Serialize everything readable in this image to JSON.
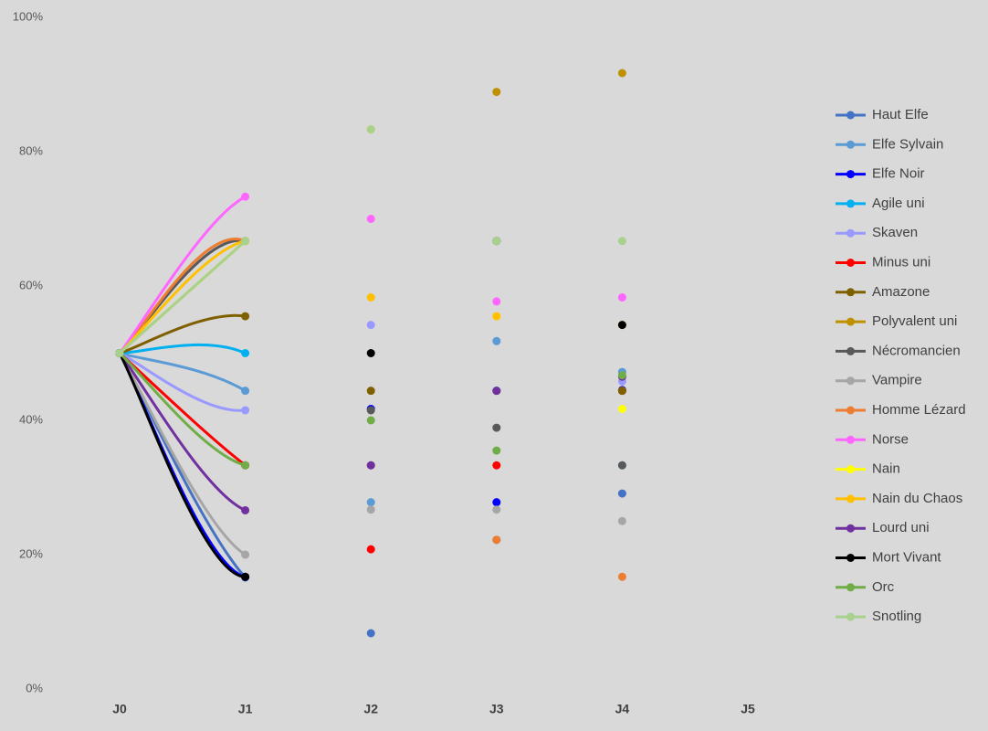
{
  "chart_data": {
    "type": "line",
    "categories": [
      "J0",
      "J1",
      "J2",
      "J3",
      "J4",
      "J5"
    ],
    "ylim": [
      0,
      100
    ],
    "yticks": [
      {
        "value": 0,
        "label": "0%"
      },
      {
        "value": 20,
        "label": "20%"
      },
      {
        "value": 40,
        "label": "40%"
      },
      {
        "value": 60,
        "label": "60%"
      },
      {
        "value": 80,
        "label": "80%"
      },
      {
        "value": 100,
        "label": "100%"
      }
    ],
    "grid": false,
    "smooth": true,
    "legend": "right",
    "series": [
      {
        "name": "Haut Elfe",
        "color": "#4472c4",
        "values": [
          50,
          16.6,
          8.3,
          22.2,
          29.1,
          null
        ]
      },
      {
        "name": "Elfe Sylvain",
        "color": "#5b9bd5",
        "values": [
          50,
          44.4,
          27.8,
          51.8,
          47.2,
          null
        ]
      },
      {
        "name": "Elfe Noir",
        "color": "#0000ff",
        "values": [
          50,
          16.7,
          41.7,
          27.8,
          44.5,
          null
        ]
      },
      {
        "name": "Agile uni",
        "color": "#00b0f0",
        "values": [
          50,
          50,
          33.3,
          44.4,
          33.3,
          null
        ]
      },
      {
        "name": "Skaven",
        "color": "#9999ff",
        "values": [
          50,
          41.5,
          54.2,
          44.4,
          45.8,
          null
        ]
      },
      {
        "name": "Minus uni",
        "color": "#ff0000",
        "values": [
          50,
          33.3,
          20.8,
          33.3,
          44.4,
          null
        ]
      },
      {
        "name": "Amazone",
        "color": "#7f6000",
        "values": [
          50,
          55.5,
          44.4,
          44.4,
          44.4,
          null
        ]
      },
      {
        "name": "Polyvalent uni",
        "color": "#bf9000",
        "values": [
          50,
          66.7,
          83.3,
          88.9,
          91.7,
          null
        ]
      },
      {
        "name": "Nécromancien",
        "color": "#595959",
        "values": [
          50,
          66.7,
          41.5,
          38.9,
          33.3,
          null
        ]
      },
      {
        "name": "Vampire",
        "color": "#a6a6a6",
        "values": [
          50,
          20,
          26.7,
          26.7,
          25,
          null
        ]
      },
      {
        "name": "Homme Lézard",
        "color": "#ed7d31",
        "values": [
          50,
          66.7,
          33.3,
          22.2,
          16.7,
          null
        ]
      },
      {
        "name": "Norse",
        "color": "#ff66ff",
        "values": [
          50,
          73.3,
          70,
          57.7,
          58.3,
          null
        ]
      },
      {
        "name": "Nain",
        "color": "#ffff00",
        "values": [
          50,
          66.7,
          83.3,
          55.5,
          41.7,
          null
        ]
      },
      {
        "name": "Nain du Chaos",
        "color": "#ffc000",
        "values": [
          50,
          66.7,
          58.3,
          55.5,
          54.2,
          null
        ]
      },
      {
        "name": "Lourd uni",
        "color": "#7030a0",
        "values": [
          50,
          26.6,
          33.3,
          44.4,
          46.5,
          null
        ]
      },
      {
        "name": "Mort Vivant",
        "color": "#000000",
        "values": [
          50,
          16.7,
          50,
          66.7,
          54.2,
          null
        ]
      },
      {
        "name": "Orc",
        "color": "#70ad47",
        "values": [
          50,
          33.3,
          40,
          35.5,
          46.7,
          null
        ]
      },
      {
        "name": "Snotling",
        "color": "#a9d18e",
        "values": [
          50,
          66.7,
          83.3,
          66.7,
          66.7,
          null
        ]
      }
    ]
  }
}
